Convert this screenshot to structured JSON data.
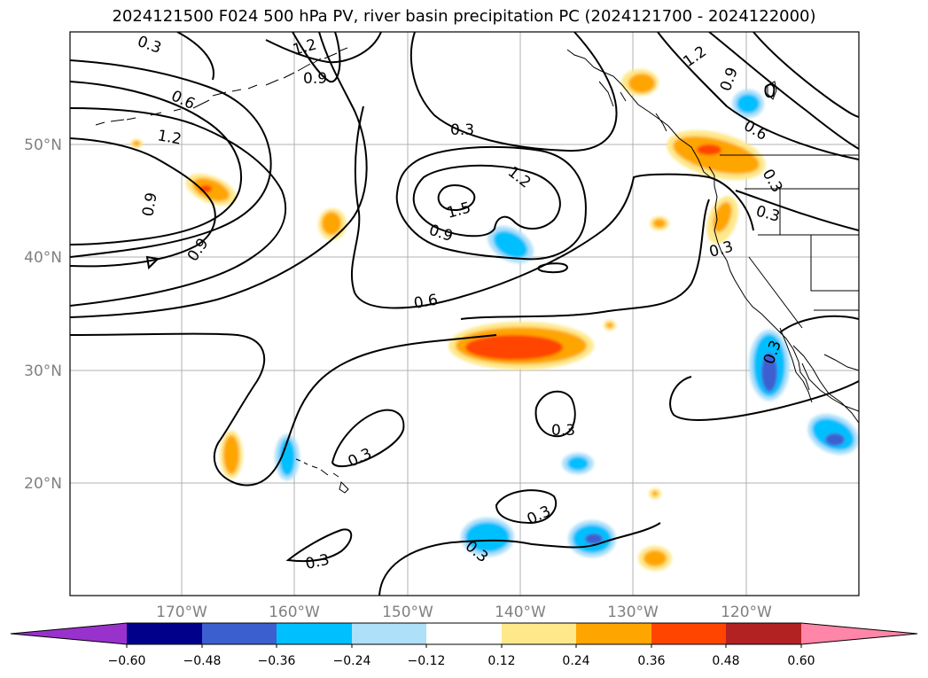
{
  "title": "2024121500 F024 500 hPa PV, river basin precipitation PC (2024121700 - 2024122000)",
  "colors": {
    "grid": "#b0b0b0",
    "coast": "#000000",
    "pos1": "#ffe88a",
    "pos2": "#ffa500",
    "pos3": "#ff4500",
    "pos4": "#b22222",
    "pos5": "#ff86a8",
    "neg1": "#aee0fa",
    "neg2": "#00bfff",
    "neg3": "#3c5fd0",
    "neg4": "#00008b",
    "neg5": "#9932cc"
  },
  "axes": {
    "lat_ticks": [
      "50°N",
      "40°N",
      "30°N",
      "20°N"
    ],
    "lon_ticks": [
      "170°W",
      "160°W",
      "150°W",
      "140°W",
      "130°W",
      "120°W"
    ]
  },
  "colorbar": {
    "ticks": [
      "−0.60",
      "−0.48",
      "−0.36",
      "−0.24",
      "−0.12",
      "0.12",
      "0.24",
      "0.36",
      "0.48",
      "0.60"
    ]
  },
  "contour_labels": [
    "0.3",
    "1.2",
    "0.9",
    "0.6",
    "1.2",
    "0.9",
    "0.9",
    "0.3",
    "1.2",
    "1.5",
    "0.9",
    "0.6",
    "1.2",
    "0.9",
    "0.6",
    "0.3",
    "0.3",
    "0.3",
    "0.3",
    "0.3",
    "0.3",
    "0.3",
    "0.3",
    "0.3"
  ]
}
